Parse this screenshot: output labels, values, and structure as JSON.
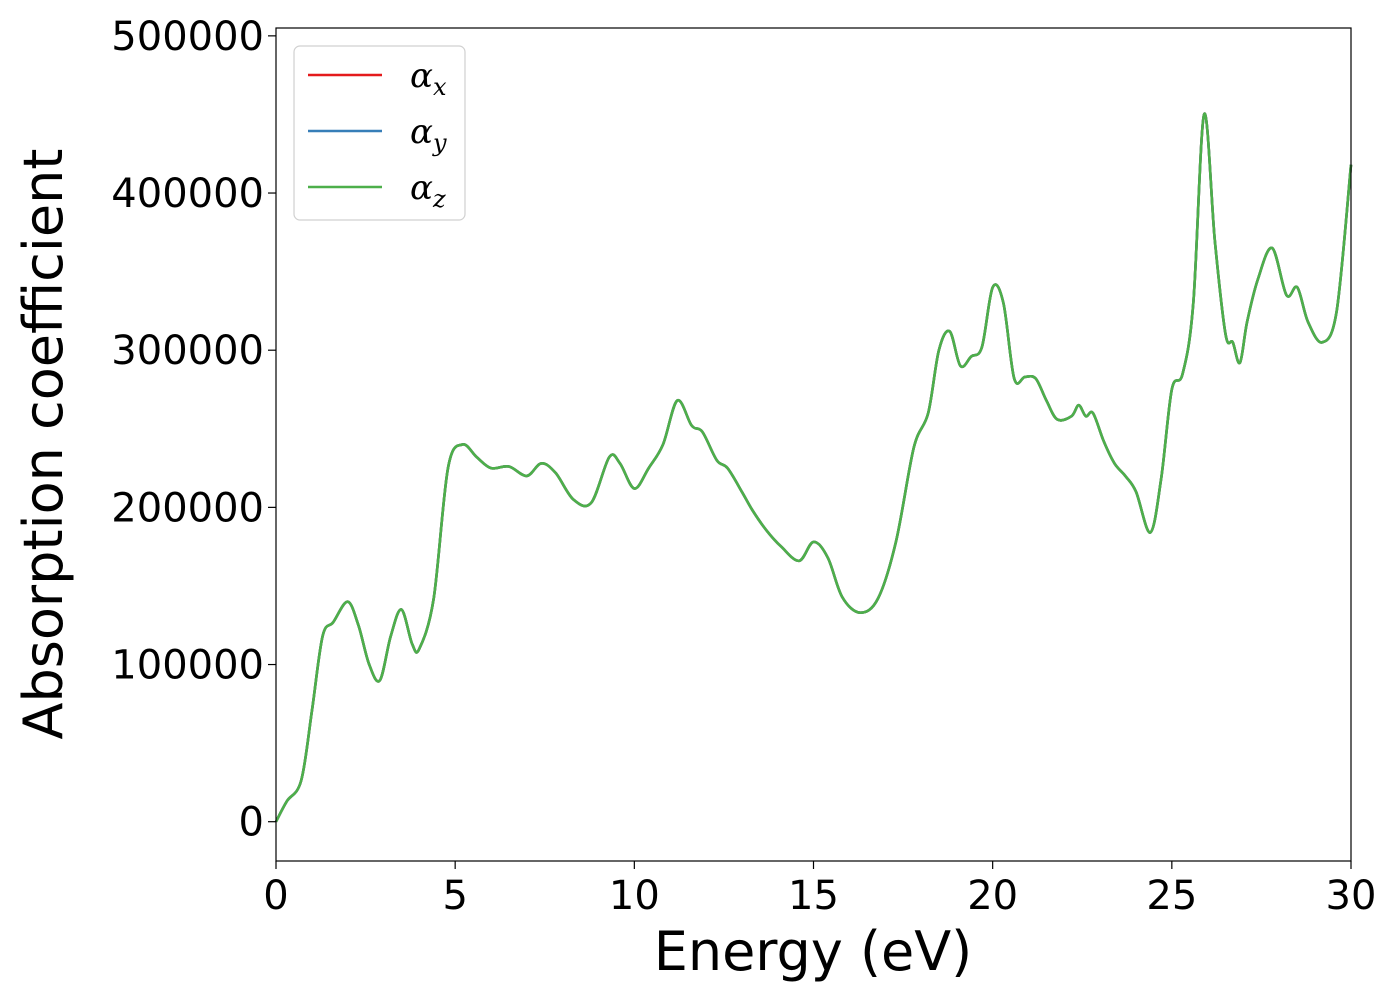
{
  "chart_data": {
    "type": "line",
    "xlabel": "Energy (eV)",
    "ylabel": "Absorption coefficient",
    "xlim": [
      0,
      30
    ],
    "ylim": [
      -25000,
      505000
    ],
    "xticks": [
      0,
      5,
      10,
      15,
      20,
      25,
      30
    ],
    "yticks": [
      0,
      100000,
      200000,
      300000,
      400000,
      500000
    ],
    "grid": false,
    "legend_position": "top-left",
    "series": [
      {
        "name": "α_x",
        "symbol": "α",
        "sub": "x",
        "color": "#e41a1c"
      },
      {
        "name": "α_y",
        "symbol": "α",
        "sub": "y",
        "color": "#377eb8"
      },
      {
        "name": "α_z",
        "symbol": "α",
        "sub": "z",
        "color": "#4daf4a"
      }
    ],
    "x": [
      0,
      0.3,
      0.7,
      1.0,
      1.3,
      1.6,
      2.0,
      2.3,
      2.6,
      2.9,
      3.2,
      3.5,
      3.8,
      4.0,
      4.4,
      4.8,
      5.2,
      5.6,
      6.0,
      6.5,
      7.0,
      7.4,
      7.8,
      8.3,
      8.8,
      9.3,
      9.6,
      10.0,
      10.4,
      10.8,
      11.2,
      11.6,
      11.9,
      12.3,
      12.6,
      13.0,
      13.3,
      13.7,
      14.1,
      14.6,
      15.0,
      15.4,
      15.8,
      16.3,
      16.8,
      17.3,
      17.8,
      18.2,
      18.5,
      18.8,
      19.1,
      19.4,
      19.7,
      20.0,
      20.3,
      20.6,
      20.9,
      21.2,
      21.5,
      21.8,
      22.2,
      22.4,
      22.6,
      22.8,
      23.1,
      23.4,
      23.7,
      24.0,
      24.4,
      24.7,
      25.0,
      25.3,
      25.6,
      25.9,
      26.2,
      26.5,
      26.7,
      26.9,
      27.1,
      27.4,
      27.8,
      28.2,
      28.5,
      28.8,
      29.2,
      29.6,
      30.0
    ],
    "y": [
      0,
      13000,
      26000,
      70000,
      118000,
      127000,
      140000,
      125000,
      100000,
      90000,
      118000,
      135000,
      113000,
      110000,
      142000,
      225000,
      240000,
      232000,
      225000,
      226000,
      220000,
      228000,
      222000,
      205000,
      203000,
      232000,
      228000,
      212000,
      225000,
      240000,
      268000,
      252000,
      248000,
      230000,
      225000,
      210000,
      198000,
      185000,
      175000,
      166000,
      178000,
      168000,
      143000,
      133000,
      142000,
      178000,
      238000,
      260000,
      300000,
      312000,
      290000,
      296000,
      302000,
      340000,
      330000,
      282000,
      283000,
      282000,
      268000,
      256000,
      258000,
      265000,
      258000,
      260000,
      242000,
      228000,
      220000,
      210000,
      184000,
      218000,
      275000,
      285000,
      330000,
      450000,
      370000,
      310000,
      305000,
      292000,
      318000,
      345000,
      365000,
      335000,
      340000,
      318000,
      305000,
      325000,
      418000
    ]
  }
}
